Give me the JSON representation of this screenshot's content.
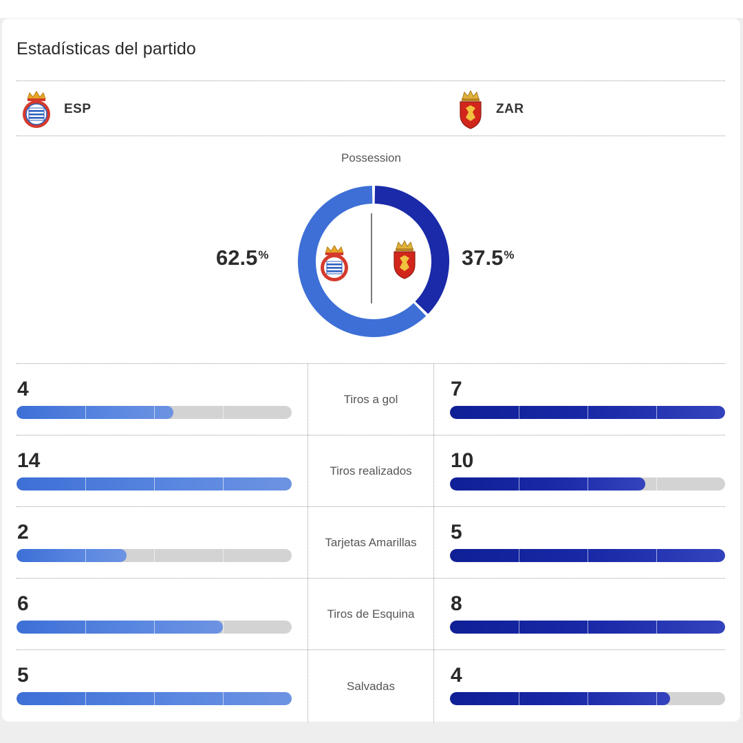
{
  "title": "Estadísticas del partido",
  "teams": {
    "home": {
      "abbr": "ESP",
      "color": "#3d6fd6"
    },
    "away": {
      "abbr": "ZAR",
      "color": "#1a2aa8"
    }
  },
  "possession": {
    "label": "Possession",
    "home_value": "62.5",
    "away_value": "37.5",
    "unit": "%",
    "home_fraction": 0.625,
    "away_fraction": 0.375
  },
  "stats": [
    {
      "label": "Tiros a gol",
      "home": 4,
      "away": 7,
      "home_fill": 0.57,
      "away_fill": 1.0
    },
    {
      "label": "Tiros realizados",
      "home": 14,
      "away": 10,
      "home_fill": 1.0,
      "away_fill": 0.71
    },
    {
      "label": "Tarjetas Amarillas",
      "home": 2,
      "away": 5,
      "home_fill": 0.4,
      "away_fill": 1.0
    },
    {
      "label": "Tiros de Esquina",
      "home": 6,
      "away": 8,
      "home_fill": 0.75,
      "away_fill": 1.0
    },
    {
      "label": "Salvadas",
      "home": 5,
      "away": 4,
      "home_fill": 1.0,
      "away_fill": 0.8
    }
  ]
}
